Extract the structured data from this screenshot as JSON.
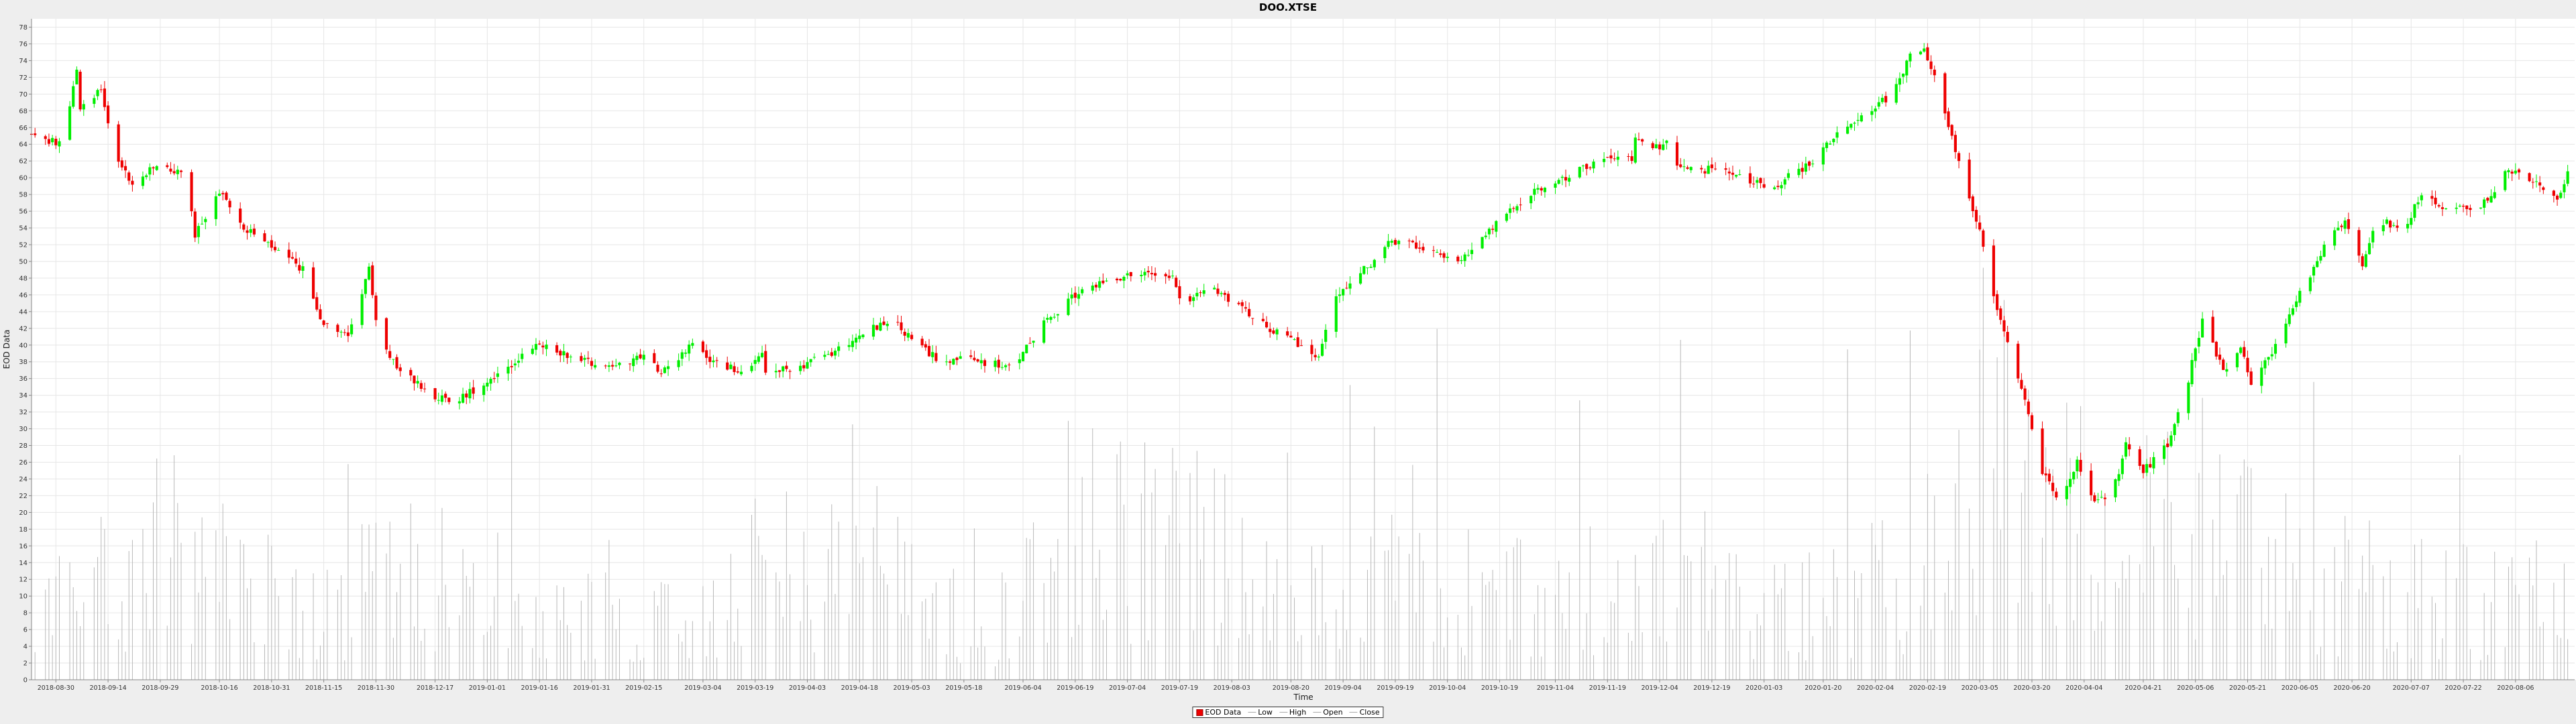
{
  "chart_data": {
    "type": "candlestick",
    "title": "DOO.XTSE",
    "xlabel": "Time",
    "ylabel": "EOD Data",
    "ylim": [
      0,
      79
    ],
    "yticks": [
      0,
      2,
      4,
      6,
      8,
      10,
      12,
      14,
      16,
      18,
      20,
      22,
      24,
      26,
      28,
      30,
      32,
      34,
      36,
      38,
      40,
      42,
      44,
      46,
      48,
      50,
      52,
      54,
      56,
      58,
      60,
      62,
      64,
      66,
      68,
      70,
      72,
      74,
      76,
      78
    ],
    "xticks": [
      "2018-08-30",
      "2018-09-14",
      "2018-09-29",
      "2018-10-16",
      "2018-10-31",
      "2018-11-15",
      "2018-11-30",
      "2018-12-17",
      "2019-01-01",
      "2019-01-16",
      "2019-01-31",
      "2019-02-15",
      "2019-03-04",
      "2019-03-19",
      "2019-04-03",
      "2019-04-18",
      "2019-05-03",
      "2019-05-18",
      "2019-06-04",
      "2019-06-19",
      "2019-07-04",
      "2019-07-19",
      "2019-08-03",
      "2019-08-20",
      "2019-09-04",
      "2019-09-19",
      "2019-10-04",
      "2019-10-19",
      "2019-11-04",
      "2019-11-19",
      "2019-12-04",
      "2019-12-19",
      "2020-01-03",
      "2020-01-20",
      "2020-02-04",
      "2020-02-19",
      "2020-03-05",
      "2020-03-20",
      "2020-04-04",
      "2020-04-21",
      "2020-05-06",
      "2020-05-21",
      "2020-06-05",
      "2020-06-20",
      "2020-07-07",
      "2020-07-22",
      "2020-08-06"
    ],
    "x_range": [
      "2018-08-23",
      "2020-08-23"
    ],
    "price_path": [
      [
        "2018-08-23",
        65
      ],
      [
        "2018-09-01",
        64
      ],
      [
        "2018-09-05",
        73
      ],
      [
        "2018-09-06",
        68
      ],
      [
        "2018-09-12",
        71
      ],
      [
        "2018-09-15",
        64
      ],
      [
        "2018-09-21",
        59
      ],
      [
        "2018-09-28",
        61.5
      ],
      [
        "2018-10-05",
        60.5
      ],
      [
        "2018-10-08",
        56
      ],
      [
        "2018-10-09",
        53
      ],
      [
        "2018-10-14",
        57
      ],
      [
        "2018-10-17",
        58.5
      ],
      [
        "2018-10-20",
        55
      ],
      [
        "2018-10-27",
        53
      ],
      [
        "2018-11-02",
        51
      ],
      [
        "2018-11-09",
        49
      ],
      [
        "2018-11-11",
        47
      ],
      [
        "2018-11-14",
        43
      ],
      [
        "2018-11-22",
        41.5
      ],
      [
        "2018-11-28",
        49
      ],
      [
        "2018-12-01",
        40
      ],
      [
        "2018-12-08",
        36.5
      ],
      [
        "2018-12-17",
        34
      ],
      [
        "2018-12-22",
        33
      ],
      [
        "2018-12-31",
        35.5
      ],
      [
        "2019-01-09",
        38
      ],
      [
        "2019-01-16",
        40
      ],
      [
        "2019-01-23",
        39
      ],
      [
        "2019-02-04",
        37.5
      ],
      [
        "2019-02-15",
        38.5
      ],
      [
        "2019-02-20",
        37
      ],
      [
        "2019-03-01",
        40
      ],
      [
        "2019-03-07",
        38
      ],
      [
        "2019-03-17",
        36.5
      ],
      [
        "2019-03-21",
        39
      ],
      [
        "2019-03-22",
        36.5
      ],
      [
        "2019-04-01",
        37.5
      ],
      [
        "2019-04-10",
        39
      ],
      [
        "2019-04-19",
        41.5
      ],
      [
        "2019-04-27",
        43
      ],
      [
        "2019-05-06",
        39.5
      ],
      [
        "2019-05-10",
        38.5
      ],
      [
        "2019-05-24",
        38
      ],
      [
        "2019-06-02",
        37
      ],
      [
        "2019-06-04",
        39.5
      ],
      [
        "2019-06-10",
        42.5
      ],
      [
        "2019-06-19",
        46
      ],
      [
        "2019-06-26",
        47.5
      ],
      [
        "2019-07-05",
        48.5
      ],
      [
        "2019-07-17",
        48.5
      ],
      [
        "2019-07-20",
        44.5
      ],
      [
        "2019-07-27",
        47
      ],
      [
        "2019-08-05",
        45
      ],
      [
        "2019-08-10",
        43
      ],
      [
        "2019-08-20",
        40.5
      ],
      [
        "2019-08-28",
        38.5
      ],
      [
        "2019-09-02",
        46
      ],
      [
        "2019-09-10",
        49
      ],
      [
        "2019-09-17",
        52
      ],
      [
        "2019-09-26",
        52
      ],
      [
        "2019-10-05",
        50
      ],
      [
        "2019-10-12",
        51.5
      ],
      [
        "2019-10-19",
        55
      ],
      [
        "2019-10-28",
        58
      ],
      [
        "2019-11-07",
        60
      ],
      [
        "2019-11-16",
        62
      ],
      [
        "2019-11-26",
        62.5
      ],
      [
        "2019-11-27",
        65
      ],
      [
        "2019-12-04",
        63.5
      ],
      [
        "2019-12-06",
        64.5
      ],
      [
        "2019-12-09",
        61
      ],
      [
        "2019-12-19",
        61
      ],
      [
        "2020-01-03",
        59
      ],
      [
        "2020-01-06",
        59
      ],
      [
        "2020-01-17",
        62
      ],
      [
        "2020-01-27",
        66.5
      ],
      [
        "2020-02-09",
        70
      ],
      [
        "2020-02-14",
        74.5
      ],
      [
        "2020-02-18",
        75
      ],
      [
        "2020-02-21",
        72
      ],
      [
        "2020-02-26",
        65
      ],
      [
        "2020-03-03",
        56
      ],
      [
        "2020-03-06",
        52
      ],
      [
        "2020-03-10",
        44
      ],
      [
        "2020-03-18",
        33
      ],
      [
        "2020-03-23",
        25
      ],
      [
        "2020-03-28",
        21
      ],
      [
        "2020-04-02",
        26
      ],
      [
        "2020-04-07",
        21
      ],
      [
        "2020-04-12",
        22
      ],
      [
        "2020-04-16",
        28
      ],
      [
        "2020-04-21",
        25
      ],
      [
        "2020-04-28",
        28
      ],
      [
        "2020-05-04",
        36
      ],
      [
        "2020-05-08",
        43
      ],
      [
        "2020-05-14",
        37
      ],
      [
        "2020-05-19",
        40
      ],
      [
        "2020-05-22",
        35
      ],
      [
        "2020-05-29",
        40
      ],
      [
        "2020-06-05",
        46
      ],
      [
        "2020-06-12",
        52
      ],
      [
        "2020-06-18",
        55
      ],
      [
        "2020-06-23",
        49
      ],
      [
        "2020-06-27",
        55
      ],
      [
        "2020-07-05",
        54
      ],
      [
        "2020-07-10",
        58
      ],
      [
        "2020-07-18",
        56
      ],
      [
        "2020-07-28",
        57
      ],
      [
        "2020-08-04",
        61
      ],
      [
        "2020-08-10",
        60
      ],
      [
        "2020-08-18",
        57
      ],
      [
        "2020-08-21",
        61
      ]
    ],
    "volume_path": [
      [
        "2018-08-23",
        6
      ],
      [
        "2018-09-14",
        12
      ],
      [
        "2018-10-05",
        15
      ],
      [
        "2018-11-01",
        9
      ],
      [
        "2018-11-20",
        8
      ],
      [
        "2018-12-10",
        16
      ],
      [
        "2019-01-01",
        7
      ],
      [
        "2019-02-01",
        8
      ],
      [
        "2019-03-01",
        8
      ],
      [
        "2019-03-25",
        13
      ],
      [
        "2019-05-01",
        11
      ],
      [
        "2019-05-25",
        5
      ],
      [
        "2019-06-15",
        17
      ],
      [
        "2019-07-20",
        17
      ],
      [
        "2019-08-20",
        10
      ],
      [
        "2019-09-20",
        11
      ],
      [
        "2019-10-20",
        10
      ],
      [
        "2019-11-20",
        10
      ],
      [
        "2019-12-20",
        11
      ],
      [
        "2020-01-10",
        8
      ],
      [
        "2020-02-10",
        11
      ],
      [
        "2020-03-10",
        24
      ],
      [
        "2020-03-25",
        22
      ],
      [
        "2020-04-15",
        17
      ],
      [
        "2020-05-15",
        15
      ],
      [
        "2020-06-15",
        11
      ],
      [
        "2020-07-15",
        9
      ],
      [
        "2020-08-23",
        10
      ]
    ],
    "legend": {
      "entries": [
        "EOD Data",
        "Low",
        "High",
        "Open",
        "Close"
      ],
      "placement": "bottom-center"
    },
    "grid": true,
    "colors": {
      "up": "#00ee00",
      "down": "#ee0000",
      "volume": "#b8b8b8",
      "grid": "#e6e6e6",
      "plot_background": "#ffffff",
      "outer_background": "#eeeeee"
    }
  }
}
